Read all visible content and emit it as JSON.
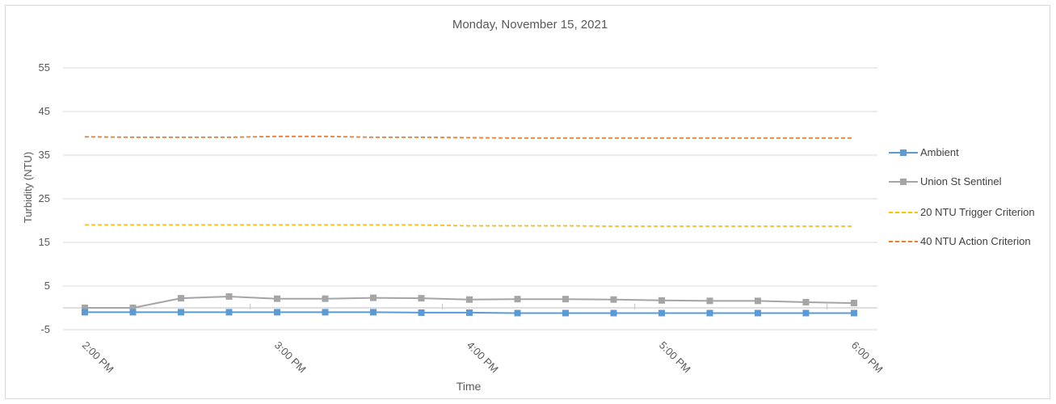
{
  "chart_data": {
    "type": "line",
    "title": "Monday, November 15, 2021",
    "xlabel": "Time",
    "ylabel": "Turbidity (NTU)",
    "ylim": [
      -5,
      60
    ],
    "yticks": [
      55,
      45,
      35,
      25,
      15,
      5,
      -5
    ],
    "x_ticks": [
      "2:00 PM",
      "3:00 PM",
      "4:00 PM",
      "5:00 PM",
      "6:00 PM"
    ],
    "x": [
      "2:00 PM",
      "2:15 PM",
      "2:30 PM",
      "2:45 PM",
      "3:00 PM",
      "3:15 PM",
      "3:30 PM",
      "3:45 PM",
      "4:00 PM",
      "4:15 PM",
      "4:30 PM",
      "4:45 PM",
      "5:00 PM",
      "5:15 PM",
      "5:30 PM",
      "5:45 PM",
      "6:00 PM"
    ],
    "grid": true,
    "legend_position": "right",
    "series": [
      {
        "name": "Ambient",
        "color": "#5b9bd5",
        "style": "solid-marker",
        "values": [
          -1.0,
          -1.0,
          -1.0,
          -1.0,
          -1.0,
          -1.0,
          -1.0,
          -1.1,
          -1.1,
          -1.2,
          -1.2,
          -1.2,
          -1.2,
          -1.2,
          -1.2,
          -1.2,
          -1.2
        ]
      },
      {
        "name": "Union St Sentinel",
        "color": "#a5a5a5",
        "style": "solid-marker",
        "values": [
          0,
          0,
          2.2,
          2.6,
          2.1,
          2.1,
          2.3,
          2.2,
          1.9,
          2.0,
          2.0,
          1.9,
          1.7,
          1.6,
          1.6,
          1.3,
          1.1
        ]
      },
      {
        "name": "20 NTU Trigger Criterion",
        "color": "#ffc000",
        "style": "dashed",
        "values": [
          19,
          19,
          19,
          19,
          19,
          19,
          19,
          19,
          18.8,
          18.8,
          18.8,
          18.7,
          18.7,
          18.7,
          18.7,
          18.7,
          18.7
        ]
      },
      {
        "name": "40 NTU Action Criterion",
        "color": "#ed7d31",
        "style": "dashed",
        "values": [
          39.2,
          39.1,
          39.1,
          39.1,
          39.3,
          39.3,
          39.1,
          39.1,
          39.0,
          38.9,
          38.9,
          38.9,
          38.9,
          38.9,
          38.9,
          38.9,
          38.9
        ]
      }
    ]
  }
}
